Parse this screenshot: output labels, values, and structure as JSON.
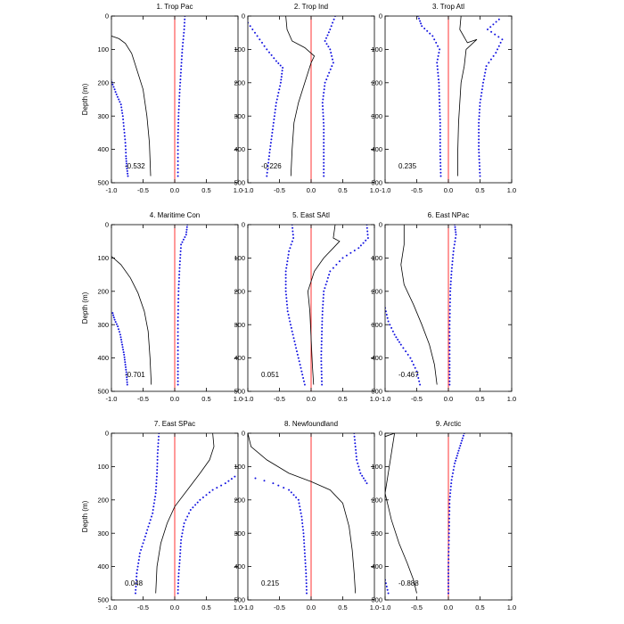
{
  "colors": {
    "line": "#000000",
    "dots": "#1010e0",
    "zero": "#ff0000",
    "axis": "#000000"
  },
  "chart_data": {
    "type": "line",
    "layout": "3x3 panel grid",
    "ylabel": "Depth (m)",
    "xlim": [
      -1.0,
      1.0
    ],
    "ylim": [
      0,
      500
    ],
    "y_inverted": true,
    "xticks": [
      "-1.0",
      "-0.5",
      "0.0",
      "0.5",
      "1.0"
    ],
    "yticks": [
      "0",
      "100",
      "200",
      "300",
      "400",
      "500"
    ],
    "panels": [
      {
        "title": "1. Trop Pac",
        "value_label": "-0.532",
        "line": [
          [
            -1.0,
            60
          ],
          [
            -0.88,
            68
          ],
          [
            -0.78,
            82
          ],
          [
            -0.68,
            112
          ],
          [
            -0.6,
            160
          ],
          [
            -0.5,
            220
          ],
          [
            -0.44,
            300
          ],
          [
            -0.4,
            380
          ],
          [
            -0.38,
            480
          ]
        ],
        "lower_dots": [
          [
            -1.02,
            185
          ],
          [
            -0.98,
            205
          ],
          [
            -0.92,
            235
          ],
          [
            -0.85,
            265
          ],
          [
            -0.82,
            300
          ],
          [
            -0.8,
            340
          ],
          [
            -0.78,
            380
          ],
          [
            -0.77,
            420
          ],
          [
            -0.76,
            450
          ],
          [
            -0.74,
            480
          ]
        ],
        "upper_dots": [
          [
            0.16,
            0
          ],
          [
            0.15,
            40
          ],
          [
            0.12,
            100
          ],
          [
            0.1,
            160
          ],
          [
            0.08,
            220
          ],
          [
            0.06,
            300
          ],
          [
            0.05,
            380
          ],
          [
            0.05,
            480
          ]
        ]
      },
      {
        "title": "2. Trop Ind",
        "value_label": "-0.226",
        "line": [
          [
            -0.4,
            0
          ],
          [
            -0.38,
            40
          ],
          [
            -0.3,
            75
          ],
          [
            -0.1,
            95
          ],
          [
            0.05,
            120
          ],
          [
            0.0,
            140
          ],
          [
            -0.1,
            200
          ],
          [
            -0.2,
            260
          ],
          [
            -0.27,
            320
          ],
          [
            -0.3,
            400
          ],
          [
            -0.32,
            480
          ]
        ],
        "lower_dots": [
          [
            -1.0,
            20
          ],
          [
            -0.85,
            60
          ],
          [
            -0.7,
            100
          ],
          [
            -0.55,
            135
          ],
          [
            -0.45,
            155
          ],
          [
            -0.48,
            200
          ],
          [
            -0.55,
            260
          ],
          [
            -0.6,
            330
          ],
          [
            -0.65,
            400
          ],
          [
            -0.7,
            480
          ]
        ],
        "upper_dots": [
          [
            0.38,
            0
          ],
          [
            0.3,
            40
          ],
          [
            0.22,
            75
          ],
          [
            0.3,
            100
          ],
          [
            0.35,
            140
          ],
          [
            0.22,
            200
          ],
          [
            0.18,
            260
          ],
          [
            0.2,
            330
          ],
          [
            0.2,
            400
          ],
          [
            0.2,
            480
          ]
        ]
      },
      {
        "title": "3. Trop Atl",
        "value_label": "0.235",
        "line": [
          [
            0.2,
            0
          ],
          [
            0.18,
            40
          ],
          [
            0.3,
            80
          ],
          [
            0.45,
            70
          ],
          [
            0.28,
            100
          ],
          [
            0.25,
            150
          ],
          [
            0.2,
            200
          ],
          [
            0.18,
            260
          ],
          [
            0.16,
            320
          ],
          [
            0.15,
            400
          ],
          [
            0.15,
            480
          ]
        ],
        "lower_dots": [
          [
            -0.48,
            0
          ],
          [
            -0.42,
            30
          ],
          [
            -0.25,
            60
          ],
          [
            -0.14,
            100
          ],
          [
            -0.18,
            140
          ],
          [
            -0.15,
            200
          ],
          [
            -0.14,
            260
          ],
          [
            -0.13,
            320
          ],
          [
            -0.13,
            400
          ],
          [
            -0.12,
            480
          ]
        ],
        "upper_dots": [
          [
            0.8,
            10
          ],
          [
            0.62,
            40
          ],
          [
            0.85,
            70
          ],
          [
            0.75,
            110
          ],
          [
            0.6,
            150
          ],
          [
            0.55,
            200
          ],
          [
            0.5,
            260
          ],
          [
            0.48,
            320
          ],
          [
            0.48,
            400
          ],
          [
            0.5,
            480
          ]
        ]
      },
      {
        "title": "4. Maritime Con",
        "value_label": "-0.701",
        "line": [
          [
            -1.0,
            95
          ],
          [
            -0.85,
            120
          ],
          [
            -0.7,
            160
          ],
          [
            -0.58,
            205
          ],
          [
            -0.48,
            260
          ],
          [
            -0.42,
            320
          ],
          [
            -0.39,
            400
          ],
          [
            -0.37,
            480
          ]
        ],
        "lower_dots": [
          [
            -0.98,
            265
          ],
          [
            -0.95,
            285
          ],
          [
            -0.9,
            305
          ],
          [
            -0.86,
            330
          ],
          [
            -0.83,
            360
          ],
          [
            -0.8,
            390
          ],
          [
            -0.78,
            420
          ],
          [
            -0.76,
            450
          ],
          [
            -0.75,
            480
          ]
        ],
        "upper_dots": [
          [
            0.2,
            0
          ],
          [
            0.18,
            30
          ],
          [
            0.1,
            60
          ],
          [
            0.08,
            120
          ],
          [
            0.06,
            200
          ],
          [
            0.05,
            300
          ],
          [
            0.05,
            400
          ],
          [
            0.05,
            480
          ]
        ]
      },
      {
        "title": "5. East SAtl",
        "value_label": "0.051",
        "line": [
          [
            0.38,
            0
          ],
          [
            0.35,
            40
          ],
          [
            0.45,
            50
          ],
          [
            0.35,
            70
          ],
          [
            0.2,
            100
          ],
          [
            0.05,
            140
          ],
          [
            -0.05,
            200
          ],
          [
            -0.02,
            260
          ],
          [
            0.0,
            340
          ],
          [
            0.02,
            420
          ],
          [
            0.04,
            480
          ]
        ],
        "lower_dots": [
          [
            -0.3,
            0
          ],
          [
            -0.28,
            40
          ],
          [
            -0.35,
            80
          ],
          [
            -0.4,
            140
          ],
          [
            -0.4,
            200
          ],
          [
            -0.37,
            260
          ],
          [
            -0.3,
            320
          ],
          [
            -0.2,
            400
          ],
          [
            -0.1,
            480
          ]
        ],
        "upper_dots": [
          [
            0.88,
            0
          ],
          [
            0.9,
            40
          ],
          [
            0.75,
            70
          ],
          [
            0.5,
            100
          ],
          [
            0.3,
            140
          ],
          [
            0.2,
            200
          ],
          [
            0.18,
            260
          ],
          [
            0.17,
            320
          ],
          [
            0.16,
            400
          ],
          [
            0.17,
            480
          ]
        ]
      },
      {
        "title": "6. East NPac",
        "value_label": "-0.467",
        "line": [
          [
            -0.7,
            0
          ],
          [
            -0.7,
            60
          ],
          [
            -0.75,
            120
          ],
          [
            -0.7,
            180
          ],
          [
            -0.55,
            240
          ],
          [
            -0.42,
            300
          ],
          [
            -0.3,
            360
          ],
          [
            -0.22,
            420
          ],
          [
            -0.18,
            480
          ]
        ],
        "lower_dots": [
          [
            -1.0,
            250
          ],
          [
            -0.95,
            290
          ],
          [
            -0.85,
            330
          ],
          [
            -0.75,
            360
          ],
          [
            -0.6,
            400
          ],
          [
            -0.5,
            440
          ],
          [
            -0.45,
            480
          ]
        ],
        "upper_dots": [
          [
            0.1,
            0
          ],
          [
            0.12,
            30
          ],
          [
            0.08,
            80
          ],
          [
            0.05,
            140
          ],
          [
            0.03,
            200
          ],
          [
            0.02,
            300
          ],
          [
            0.02,
            400
          ],
          [
            0.02,
            480
          ]
        ]
      },
      {
        "title": "7. East SPac",
        "value_label": "0.048",
        "line": [
          [
            0.6,
            0
          ],
          [
            0.62,
            40
          ],
          [
            0.55,
            80
          ],
          [
            0.4,
            120
          ],
          [
            0.2,
            170
          ],
          [
            0.0,
            220
          ],
          [
            -0.12,
            270
          ],
          [
            -0.22,
            330
          ],
          [
            -0.28,
            400
          ],
          [
            -0.3,
            480
          ]
        ],
        "lower_dots": [
          [
            -0.25,
            0
          ],
          [
            -0.27,
            60
          ],
          [
            -0.28,
            120
          ],
          [
            -0.3,
            180
          ],
          [
            -0.35,
            240
          ],
          [
            -0.45,
            300
          ],
          [
            -0.55,
            360
          ],
          [
            -0.6,
            420
          ],
          [
            -0.62,
            480
          ]
        ],
        "upper_dots": [
          [
            0.95,
            130
          ],
          [
            0.8,
            150
          ],
          [
            0.6,
            170
          ],
          [
            0.4,
            200
          ],
          [
            0.25,
            230
          ],
          [
            0.15,
            270
          ],
          [
            0.1,
            320
          ],
          [
            0.08,
            380
          ],
          [
            0.06,
            430
          ],
          [
            0.05,
            480
          ]
        ]
      },
      {
        "title": "8. Newfoundland",
        "value_label": "0.215",
        "line": [
          [
            -1.0,
            0
          ],
          [
            -0.95,
            40
          ],
          [
            -0.7,
            80
          ],
          [
            -0.35,
            120
          ],
          [
            0.0,
            145
          ],
          [
            0.3,
            170
          ],
          [
            0.5,
            210
          ],
          [
            0.6,
            280
          ],
          [
            0.65,
            350
          ],
          [
            0.68,
            420
          ],
          [
            0.7,
            480
          ]
        ],
        "lower_dots": [
          [
            -0.88,
            135
          ],
          [
            -0.6,
            150
          ],
          [
            -0.35,
            170
          ],
          [
            -0.2,
            200
          ],
          [
            -0.15,
            250
          ],
          [
            -0.12,
            300
          ],
          [
            -0.1,
            360
          ],
          [
            -0.08,
            420
          ],
          [
            -0.07,
            480
          ]
        ],
        "upper_dots": [
          [
            0.68,
            0
          ],
          [
            0.7,
            40
          ],
          [
            0.72,
            80
          ],
          [
            0.78,
            120
          ],
          [
            0.88,
            150
          ]
        ]
      },
      {
        "title": "9. Arctic",
        "value_label": "-0.888",
        "line": [
          [
            -1.0,
            10
          ],
          [
            -0.85,
            0
          ],
          [
            -1.0,
            180
          ],
          [
            -0.9,
            260
          ],
          [
            -0.78,
            330
          ],
          [
            -0.65,
            390
          ],
          [
            -0.55,
            440
          ],
          [
            -0.5,
            480
          ]
        ],
        "lower_dots": [
          [
            -1.0,
            440
          ],
          [
            -0.95,
            480
          ]
        ],
        "upper_dots": [
          [
            0.25,
            0
          ],
          [
            0.2,
            30
          ],
          [
            0.15,
            60
          ],
          [
            0.1,
            90
          ],
          [
            0.05,
            140
          ],
          [
            0.02,
            200
          ],
          [
            0.01,
            300
          ],
          [
            0.0,
            400
          ],
          [
            0.0,
            480
          ]
        ]
      }
    ]
  }
}
